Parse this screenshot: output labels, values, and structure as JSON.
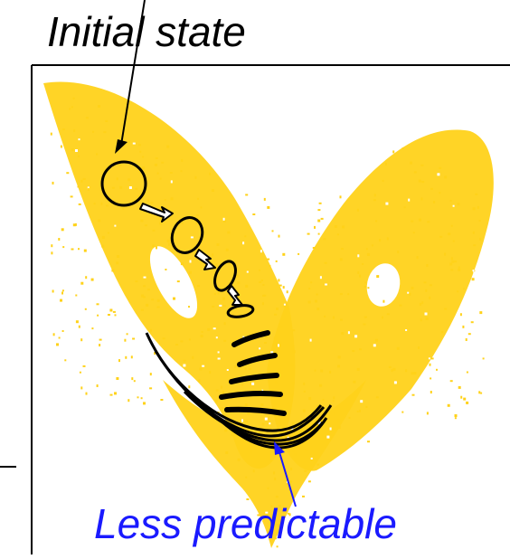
{
  "labels": {
    "initial_state": "Initial state",
    "less_predictable": "Less predictable"
  },
  "colors": {
    "attractor": "#ffd21a",
    "frame": "#000000",
    "initial_label": "#000000",
    "less_predictable_label": "#1a1aff",
    "ensemble": "#000000",
    "arrow_body": "#ffffff",
    "pointer": "#1a1aff"
  },
  "icons": {
    "ensemble_marker": "ellipse",
    "transition_marker": "hollow-arrow"
  }
}
